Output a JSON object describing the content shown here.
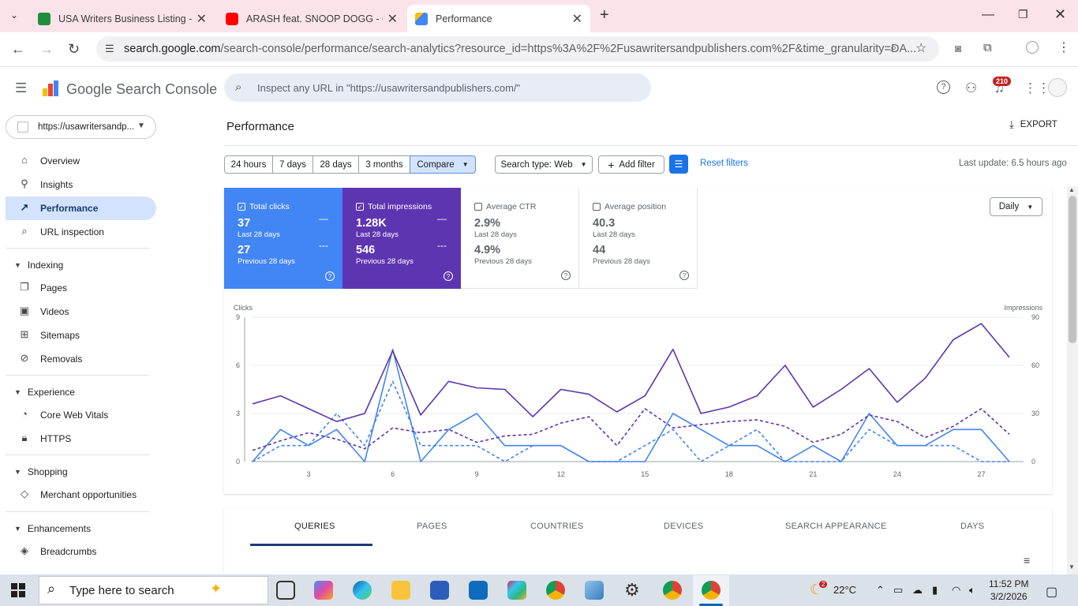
{
  "browser": {
    "tabs": [
      {
        "title": "USA Writers Business Listing - G",
        "favicon_color": "#1e8e3e"
      },
      {
        "title": "ARASH feat. SNOOP DOGG - OK",
        "favicon_color": "#ff0000"
      },
      {
        "title": "Performance",
        "favicon_color": "#4285f4"
      }
    ],
    "url_domain": "search.google.com",
    "url_path": "/search-console/performance/search-analytics?resource_id=https%3A%2F%2Fusawritersandpublishers.com%2F&time_granularity=DA..."
  },
  "header": {
    "logo_text": "Google Search Console",
    "search_placeholder": "Inspect any URL in \"https://usawritersandpublishers.com/\"",
    "notification_count": "210"
  },
  "sidebar": {
    "property": "https://usawritersandp...",
    "items": [
      {
        "label": "Overview"
      },
      {
        "label": "Insights"
      },
      {
        "label": "Performance"
      },
      {
        "label": "URL inspection"
      }
    ],
    "sections": [
      {
        "title": "Indexing",
        "items": [
          "Pages",
          "Videos",
          "Sitemaps",
          "Removals"
        ]
      },
      {
        "title": "Experience",
        "items": [
          "Core Web Vitals",
          "HTTPS"
        ]
      },
      {
        "title": "Shopping",
        "items": [
          "Merchant opportunities"
        ]
      },
      {
        "title": "Enhancements",
        "items": [
          "Breadcrumbs"
        ]
      }
    ]
  },
  "main": {
    "title": "Performance",
    "export_label": "EXPORT",
    "date_chips": [
      "24 hours",
      "7 days",
      "28 days",
      "3 months",
      "Compare"
    ],
    "search_type": "Search type: Web",
    "add_filter": "Add filter",
    "reset_filters": "Reset filters",
    "last_update": "Last update: 6.5 hours ago",
    "granularity": "Daily",
    "metrics": [
      {
        "name": "Total clicks",
        "cur": "37",
        "cur_label": "Last 28 days",
        "prev": "27",
        "prev_label": "Previous 28 days",
        "checked": true
      },
      {
        "name": "Total impressions",
        "cur": "1.28K",
        "cur_label": "Last 28 days",
        "prev": "546",
        "prev_label": "Previous 28 days",
        "checked": true
      },
      {
        "name": "Average CTR",
        "cur": "2.9%",
        "cur_label": "Last 28 days",
        "prev": "4.9%",
        "prev_label": "Previous 28 days",
        "checked": false
      },
      {
        "name": "Average position",
        "cur": "40.3",
        "cur_label": "Last 28 days",
        "prev": "44",
        "prev_label": "Previous 28 days",
        "checked": false
      }
    ],
    "lower_tabs": [
      "QUERIES",
      "PAGES",
      "COUNTRIES",
      "DEVICES",
      "SEARCH APPEARANCE",
      "DAYS"
    ]
  },
  "chart_data": {
    "type": "line",
    "ylabel_left": "Clicks",
    "ylabel_right": "Impressions",
    "yticks_left": [
      0,
      3,
      6,
      9
    ],
    "yticks_right": [
      0,
      30,
      60,
      90
    ],
    "ylim_left": [
      0,
      9
    ],
    "ylim_right": [
      0,
      90
    ],
    "x": [
      1,
      2,
      3,
      4,
      5,
      6,
      7,
      8,
      9,
      10,
      11,
      12,
      13,
      14,
      15,
      16,
      17,
      18,
      19,
      20,
      21,
      22,
      23,
      24,
      25,
      26,
      27,
      28
    ],
    "xticks": [
      3,
      6,
      9,
      12,
      15,
      18,
      21,
      24,
      27
    ],
    "series": [
      {
        "axis": "left",
        "color": "#4285f4",
        "dashed": false,
        "values": [
          0,
          2,
          1,
          2,
          0,
          7,
          0,
          2,
          3,
          1,
          1,
          1,
          0,
          0,
          0,
          3,
          2,
          1,
          1,
          0,
          1,
          0,
          3,
          1,
          1,
          2,
          2,
          0
        ]
      },
      {
        "axis": "left",
        "color": "#4285f4",
        "dashed": true,
        "values": [
          0,
          1,
          1,
          3,
          1,
          5,
          1,
          1,
          1,
          0,
          1,
          1,
          0,
          0,
          1,
          2,
          0,
          1,
          2,
          0,
          0,
          0,
          2,
          1,
          1,
          1,
          0,
          0
        ]
      },
      {
        "axis": "right",
        "color": "#5e35b1",
        "dashed": false,
        "values": [
          36,
          41,
          33,
          25,
          30,
          69,
          29,
          50,
          46,
          45,
          28,
          45,
          42,
          31,
          41,
          70,
          30,
          34,
          41,
          60,
          34,
          45,
          58,
          37,
          52,
          76,
          86,
          65
        ]
      },
      {
        "axis": "right",
        "color": "#5e35b1",
        "dashed": true,
        "values": [
          7,
          13,
          18,
          14,
          8,
          21,
          18,
          20,
          12,
          16,
          17,
          24,
          28,
          10,
          33,
          21,
          23,
          25,
          26,
          22,
          12,
          17,
          29,
          25,
          15,
          22,
          33,
          17
        ]
      }
    ]
  },
  "taskbar": {
    "search_placeholder": "Type here to search",
    "weather": "22°C",
    "time": "11:52 PM",
    "date": "3/2/2026",
    "weather_badge": "2"
  }
}
